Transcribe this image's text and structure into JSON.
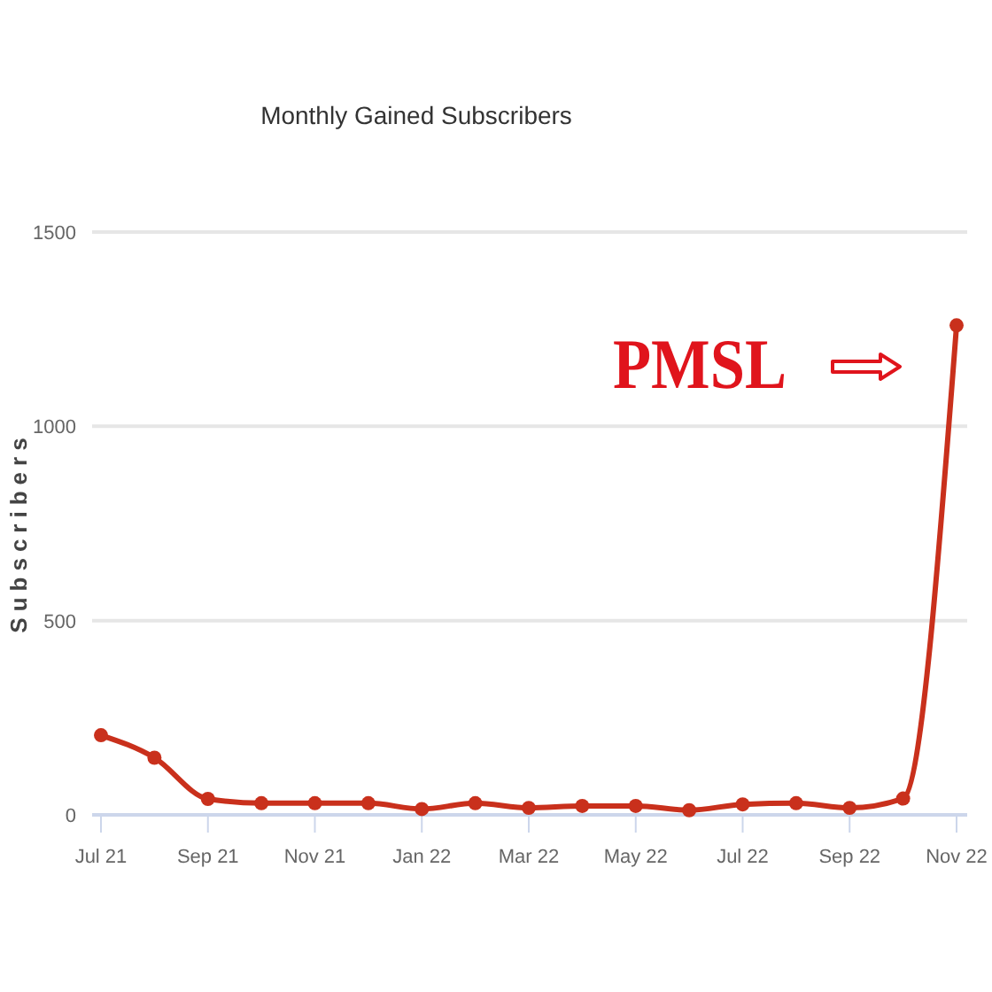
{
  "chart_data": {
    "type": "line",
    "title": "Monthly Gained Subscribers",
    "ylabel": "Subscribers",
    "categories": [
      "Jul 21",
      null,
      "Sep 21",
      null,
      "Nov 21",
      null,
      "Jan 22",
      null,
      "Mar 22",
      null,
      "May 22",
      null,
      "Jul 22",
      null,
      "Sep 22",
      null,
      "Nov 22"
    ],
    "series": [
      {
        "color": "#c9301c",
        "values": [
          205,
          147,
          41,
          30,
          30,
          30,
          15,
          30,
          18,
          23,
          23,
          12,
          27,
          30,
          18,
          42,
          1260
        ]
      }
    ],
    "ylim": [
      0,
      1500
    ],
    "yticks": [
      0,
      500,
      1000,
      1500
    ],
    "grid": "y",
    "marker": "circle",
    "line_style": "solid",
    "annotations": [
      "PMSL"
    ]
  }
}
